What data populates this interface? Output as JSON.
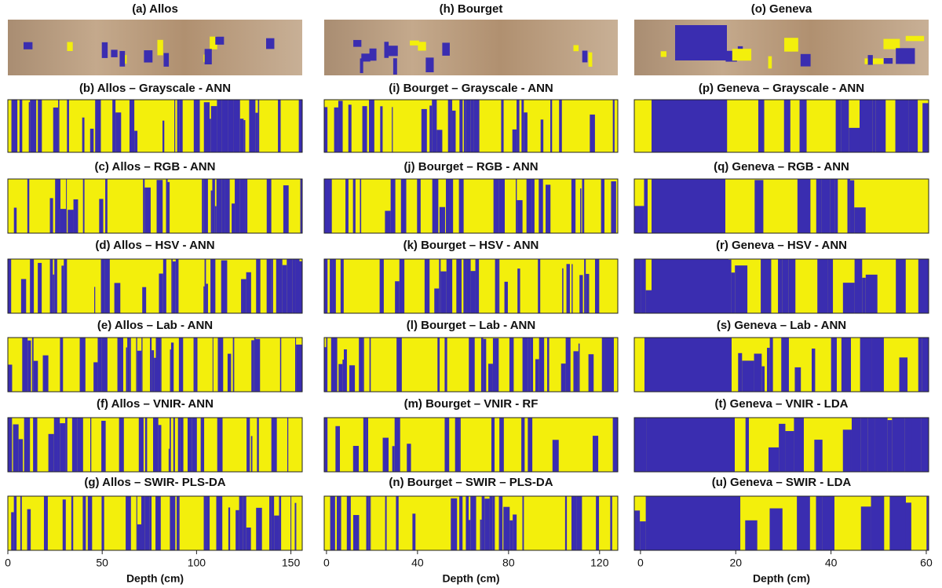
{
  "columns": [
    {
      "title": "(a) Allos",
      "panels": [
        "(b) Allos – Grayscale - ANN",
        "(c) Allos – RGB - ANN",
        "(d) Allos – HSV - ANN",
        "(e) Allos – Lab - ANN",
        "(f) Allos – VNIR- ANN",
        "(g) Allos – SWIR- PLS-DA"
      ],
      "axis": {
        "label": "Depth (cm)",
        "lim": [
          0,
          156
        ],
        "ticks": [
          0,
          50,
          100,
          150
        ]
      }
    },
    {
      "title": "(h) Bourget",
      "panels": [
        "(i) Bourget – Grayscale - ANN",
        "(j) Bourget – RGB - ANN",
        "(k) Bourget – HSV - ANN",
        "(l) Bourget – Lab - ANN",
        "(m) Bourget – VNIR - RF",
        "(n) Bourget – SWIR – PLS-DA"
      ],
      "axis": {
        "label": "Depth (cm)",
        "lim": [
          -1,
          128
        ],
        "ticks": [
          0,
          40,
          80,
          120
        ]
      }
    },
    {
      "title": "(o) Geneva",
      "panels": [
        "(p) Geneva – Grayscale - ANN",
        "(q) Geneva – RGB - ANN",
        "(r) Geneva – HSV - ANN",
        "(s) Geneva – Lab - ANN",
        "(t) Geneva – VNIR - LDA",
        "(u) Geneva – SWIR - LDA"
      ],
      "axis": {
        "label": "Depth (cm)",
        "lim": [
          -1.3,
          60.5
        ],
        "ticks": [
          0,
          20,
          40,
          60
        ]
      }
    }
  ]
}
